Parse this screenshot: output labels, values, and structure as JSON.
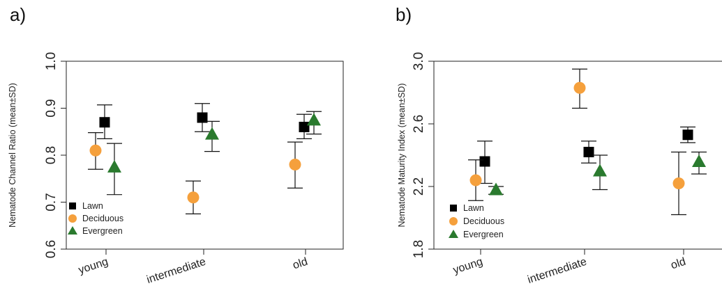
{
  "chart_data": [
    {
      "type": "scatter",
      "panel_label": "a)",
      "ylabel": "Nematode Channel Ratio (mean±SD)",
      "ylim": [
        0.6,
        1.0
      ],
      "yticks": [
        "0.6",
        "0.7",
        "0.8",
        "0.9",
        "1.0"
      ],
      "categories": [
        "young",
        "intermediate",
        "old"
      ],
      "legend": {
        "placement": "bottom-left"
      },
      "grid": false,
      "series": [
        {
          "name": "Lawn",
          "marker": "square",
          "color": "#000000",
          "values": [
            {
              "category": "young",
              "mean": 0.87,
              "low": 0.835,
              "high": 0.907
            },
            {
              "category": "intermediate",
              "mean": 0.88,
              "low": 0.85,
              "high": 0.91
            },
            {
              "category": "old",
              "mean": 0.86,
              "low": 0.835,
              "high": 0.887
            }
          ]
        },
        {
          "name": "Deciduous",
          "marker": "circle",
          "color": "#f5a03c",
          "values": [
            {
              "category": "young",
              "mean": 0.81,
              "low": 0.77,
              "high": 0.848
            },
            {
              "category": "intermediate",
              "mean": 0.71,
              "low": 0.675,
              "high": 0.745
            },
            {
              "category": "old",
              "mean": 0.78,
              "low": 0.73,
              "high": 0.828
            }
          ]
        },
        {
          "name": "Evergreen",
          "marker": "triangle",
          "color": "#2a7a2e",
          "values": [
            {
              "category": "young",
              "mean": 0.775,
              "low": 0.716,
              "high": 0.825
            },
            {
              "category": "intermediate",
              "mean": 0.845,
              "low": 0.808,
              "high": 0.872
            },
            {
              "category": "old",
              "mean": 0.875,
              "low": 0.845,
              "high": 0.893
            }
          ]
        }
      ]
    },
    {
      "type": "scatter",
      "panel_label": "b)",
      "ylabel": "Nematode Maturity Index (mean±SD)",
      "ylim": [
        1.8,
        3.0
      ],
      "yticks": [
        "1.8",
        "2.2",
        "2.6",
        "3.0"
      ],
      "categories": [
        "young",
        "intermediate",
        "old"
      ],
      "legend": {
        "placement": "bottom-left"
      },
      "grid": false,
      "series": [
        {
          "name": "Lawn",
          "marker": "square",
          "color": "#000000",
          "values": [
            {
              "category": "young",
              "mean": 2.36,
              "low": 2.22,
              "high": 2.49
            },
            {
              "category": "intermediate",
              "mean": 2.42,
              "low": 2.35,
              "high": 2.49
            },
            {
              "category": "old",
              "mean": 2.53,
              "low": 2.48,
              "high": 2.58
            }
          ]
        },
        {
          "name": "Deciduous",
          "marker": "circle",
          "color": "#f5a03c",
          "values": [
            {
              "category": "young",
              "mean": 2.24,
              "low": 2.11,
              "high": 2.37
            },
            {
              "category": "intermediate",
              "mean": 2.83,
              "low": 2.7,
              "high": 2.95
            },
            {
              "category": "old",
              "mean": 2.22,
              "low": 2.02,
              "high": 2.42
            }
          ]
        },
        {
          "name": "Evergreen",
          "marker": "triangle",
          "color": "#2a7a2e",
          "values": [
            {
              "category": "young",
              "mean": 2.18,
              "low": 2.15,
              "high": 2.2
            },
            {
              "category": "intermediate",
              "mean": 2.3,
              "low": 2.18,
              "high": 2.4
            },
            {
              "category": "old",
              "mean": 2.36,
              "low": 2.28,
              "high": 2.42
            }
          ]
        }
      ]
    }
  ]
}
